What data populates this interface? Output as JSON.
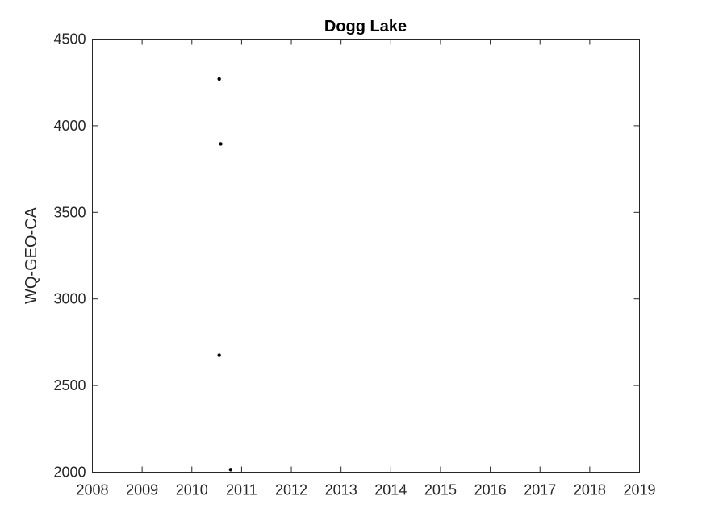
{
  "chart_data": {
    "type": "scatter",
    "title": "Dogg Lake",
    "xlabel": "",
    "ylabel": "WQ-GEO-CA",
    "xlim": [
      2008,
      2019
    ],
    "ylim": [
      2000,
      4500
    ],
    "x_ticks": [
      "2008",
      "2009",
      "2010",
      "2011",
      "2012",
      "2013",
      "2014",
      "2015",
      "2016",
      "2017",
      "2018",
      "2019"
    ],
    "y_ticks": [
      "2000",
      "2500",
      "3000",
      "3500",
      "4000",
      "4500"
    ],
    "grid": false,
    "marker_color": "#000000",
    "points": [
      {
        "x": 2010.55,
        "y": 4270
      },
      {
        "x": 2010.58,
        "y": 3895
      },
      {
        "x": 2010.55,
        "y": 2675
      },
      {
        "x": 2010.78,
        "y": 2015
      }
    ]
  }
}
